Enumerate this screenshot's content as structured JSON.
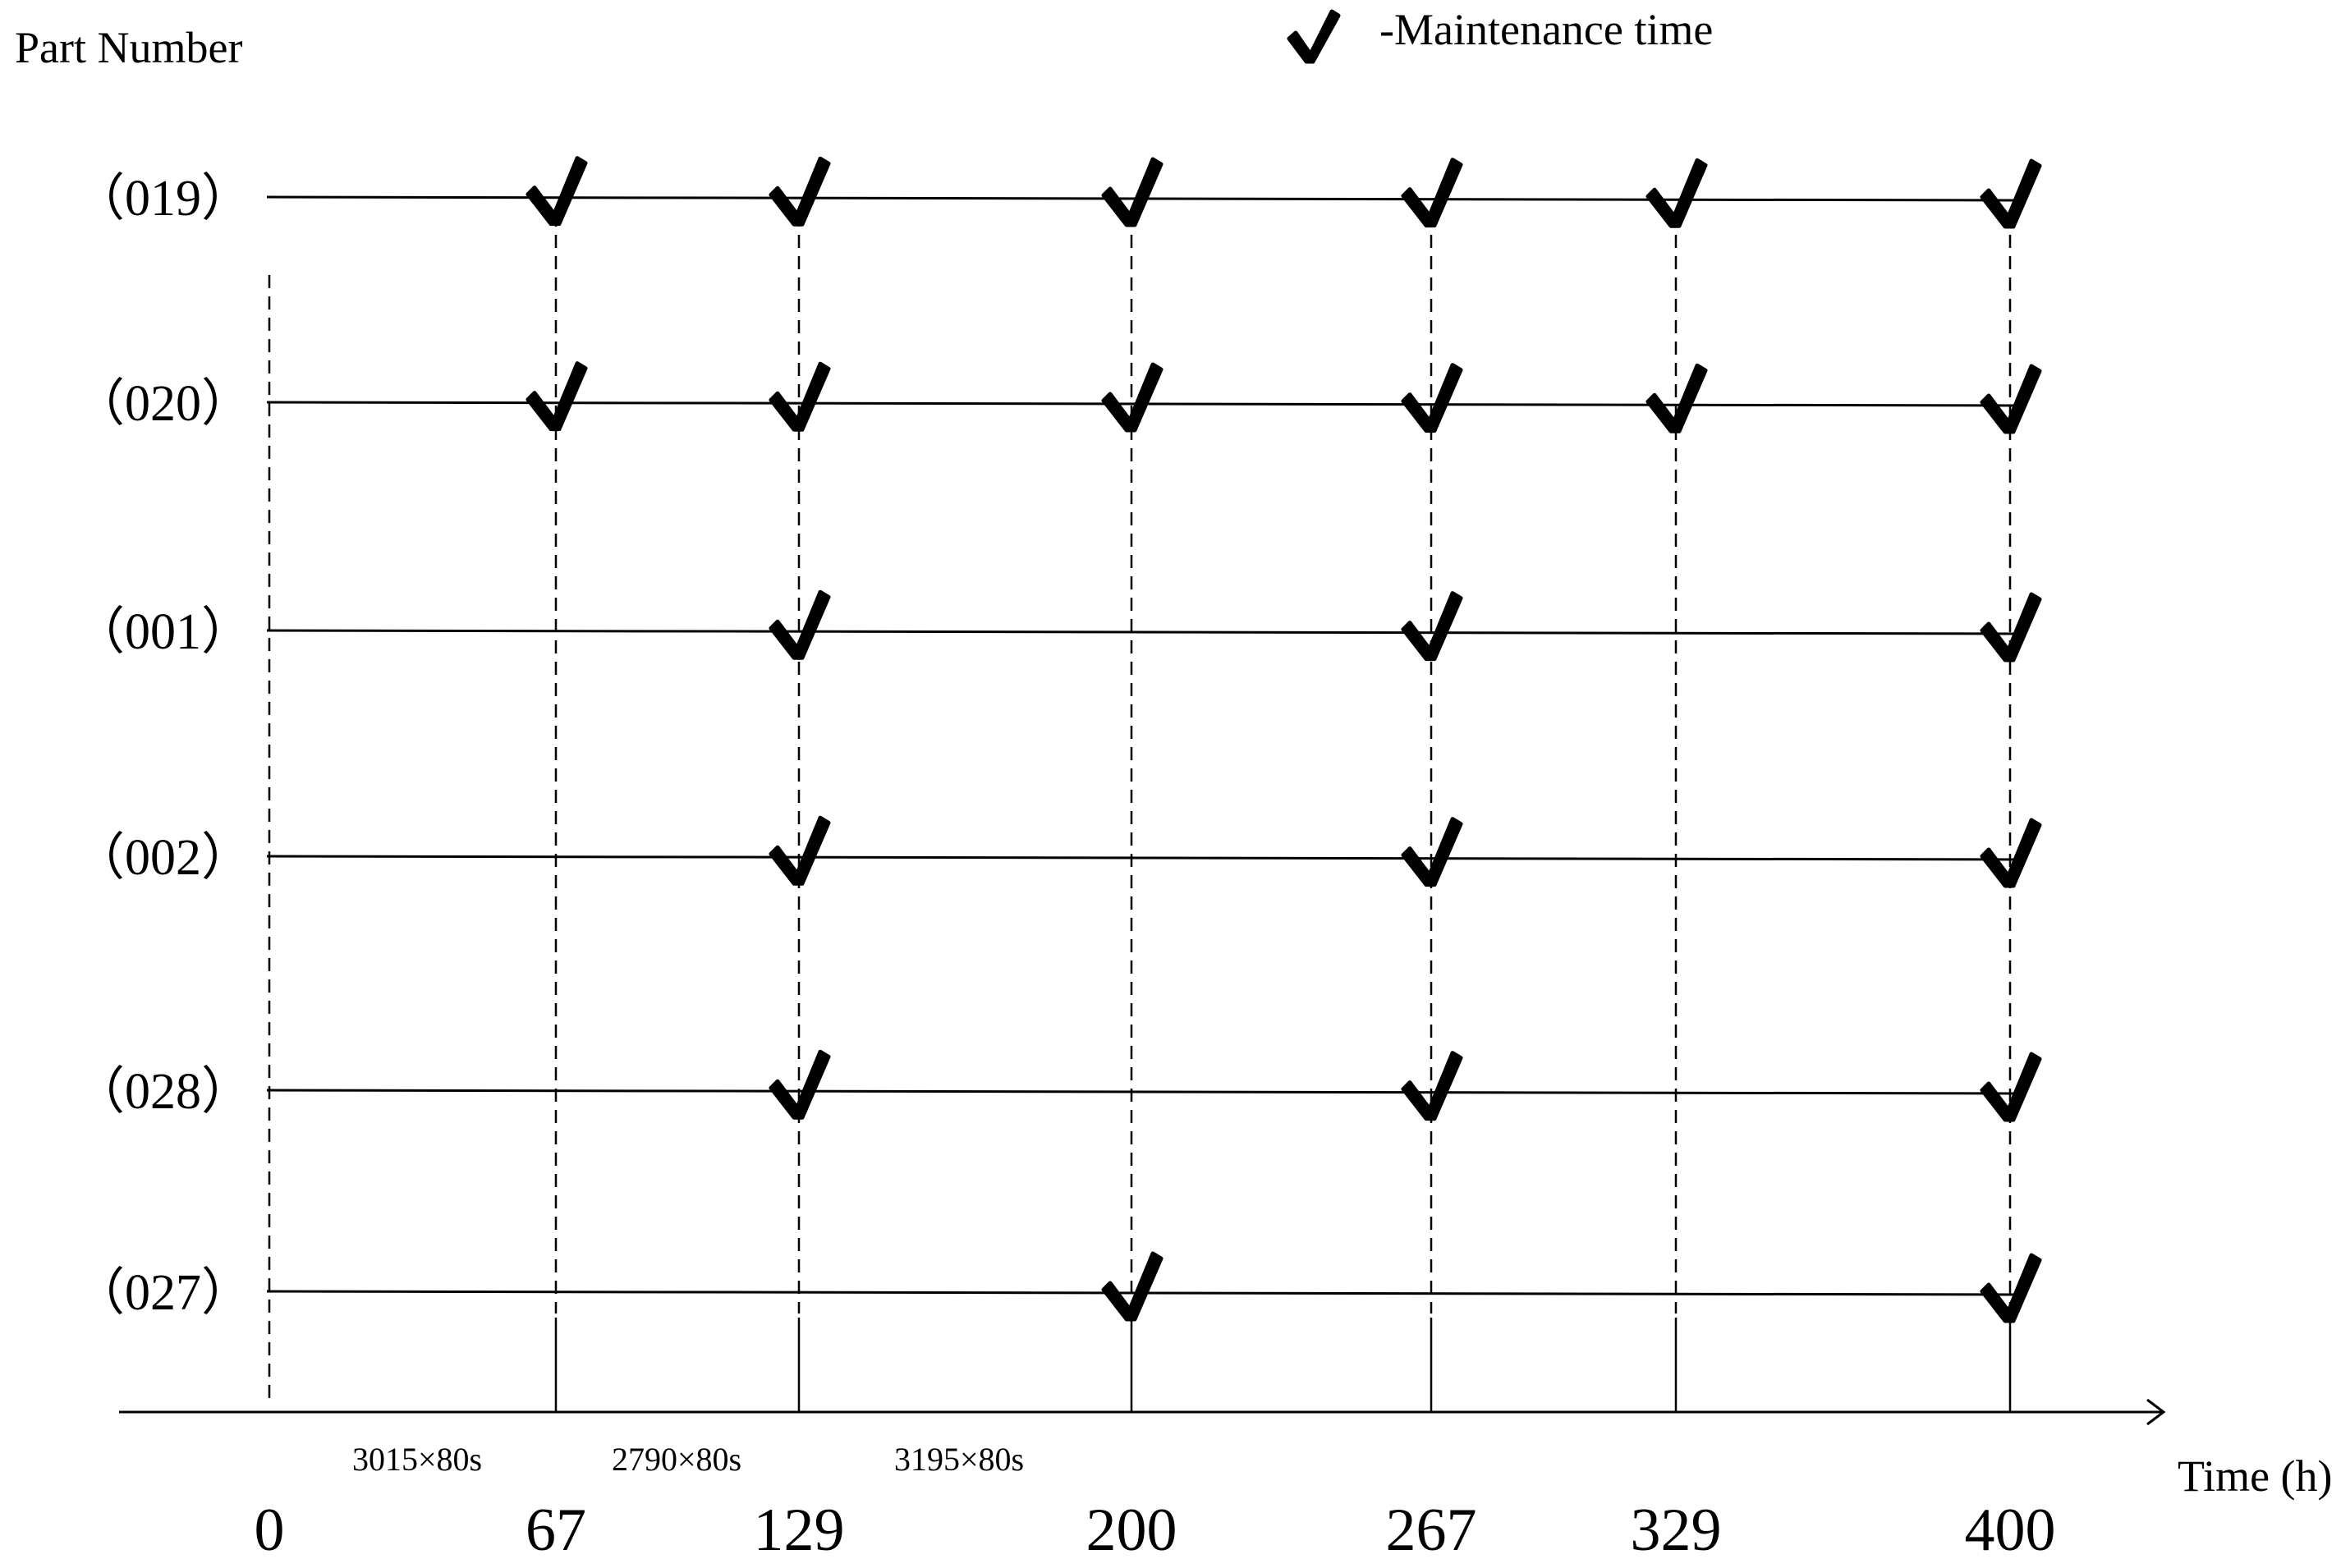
{
  "y_axis_title": "Part Number",
  "x_axis_title": "Time (h)",
  "legend": {
    "icon": "check-mark-icon",
    "label": "-Maintenance time"
  },
  "parts": [
    {
      "label": "（019）",
      "maintenance_times": [
        67,
        129,
        200,
        267,
        329,
        400
      ]
    },
    {
      "label": "（020）",
      "maintenance_times": [
        67,
        129,
        200,
        267,
        329,
        400
      ]
    },
    {
      "label": "（001）",
      "maintenance_times": [
        129,
        267,
        400
      ]
    },
    {
      "label": "（002）",
      "maintenance_times": [
        129,
        267,
        400
      ]
    },
    {
      "label": "（028）",
      "maintenance_times": [
        129,
        267,
        400
      ]
    },
    {
      "label": "（027）",
      "maintenance_times": [
        200,
        400
      ]
    }
  ],
  "time_ticks": [
    "0",
    "67",
    "129",
    "200",
    "267",
    "329",
    "400"
  ],
  "duration_labels": [
    "3015×80s",
    "2790×80s",
    "3195×80s"
  ],
  "colors": {
    "ink": "#000000",
    "background": "#ffffff"
  }
}
